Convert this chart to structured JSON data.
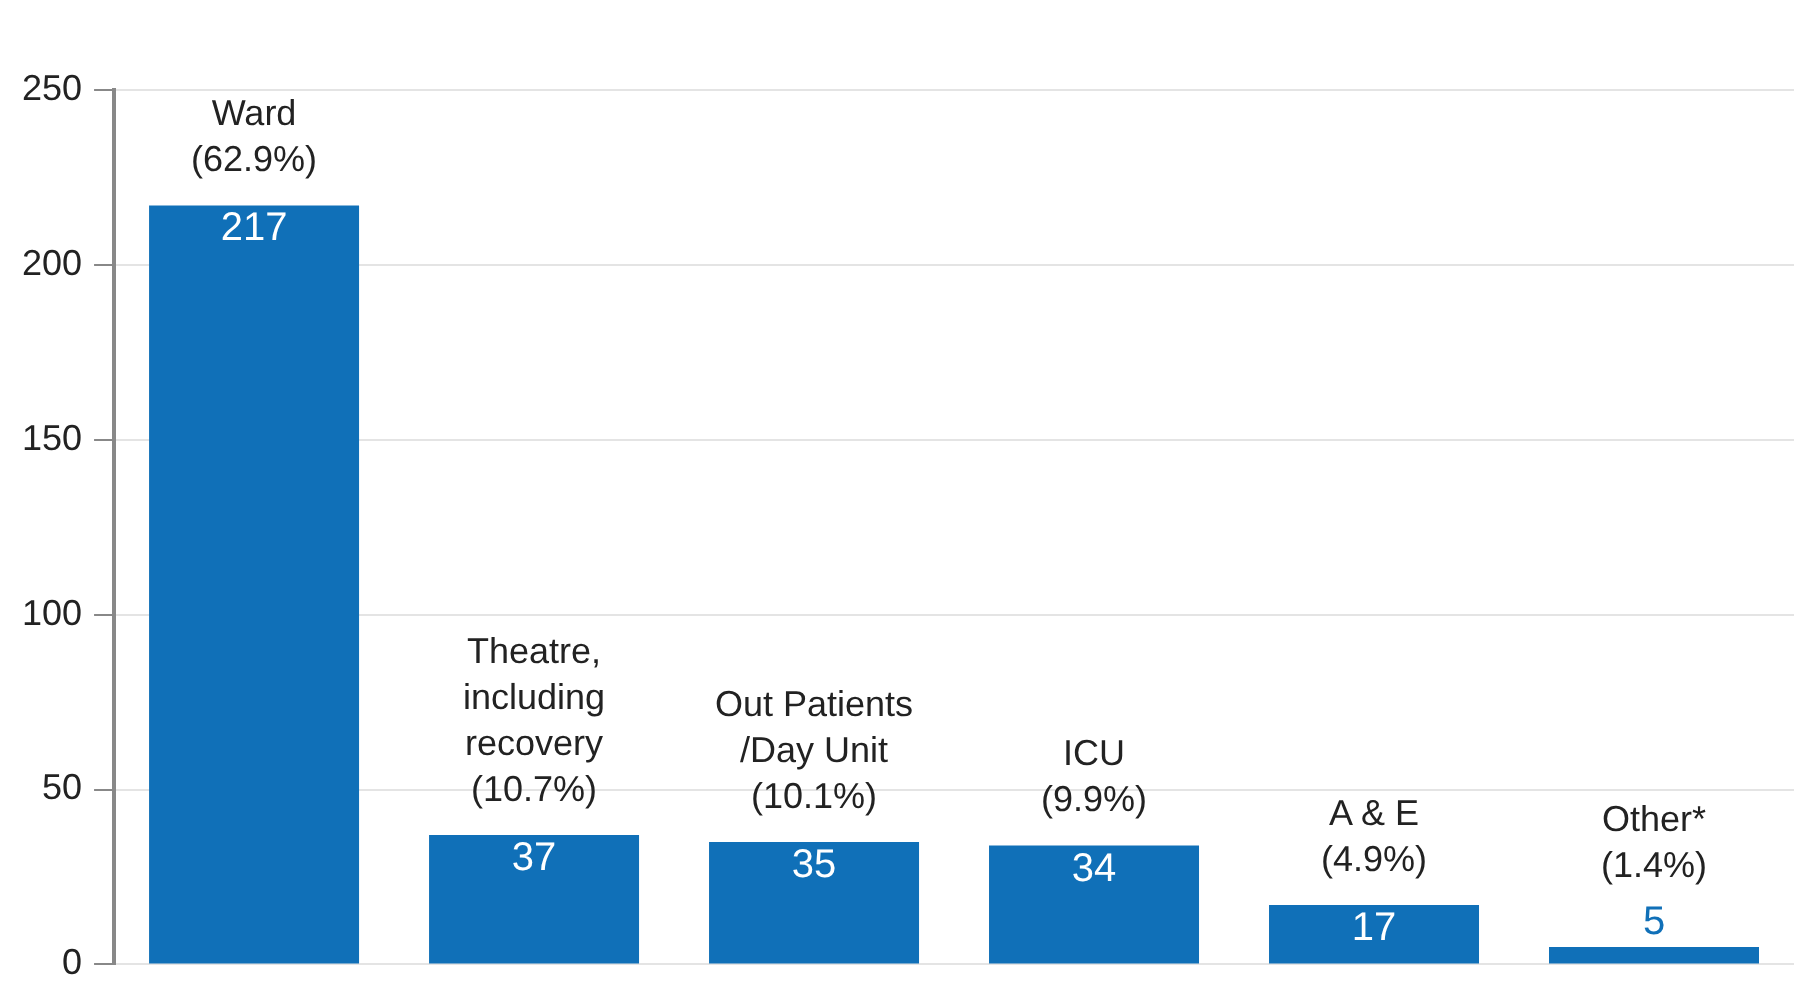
{
  "chart_data": {
    "type": "bar",
    "categories": [
      "Ward\n(62.9%)",
      "Theatre,\nincluding\nrecovery\n(10.7%)",
      "Out Patients\n/Day Unit\n(10.1%)",
      "ICU\n(9.9%)",
      "A & E\n(4.9%)",
      "Other*\n(1.4%)"
    ],
    "values": [
      217,
      37,
      35,
      34,
      17,
      5
    ],
    "color": "#1070b8",
    "ylim": [
      0,
      250
    ],
    "yticks": [
      0,
      50,
      100,
      150,
      200,
      250
    ],
    "grid": "y",
    "data_labels": true,
    "legend": false
  }
}
